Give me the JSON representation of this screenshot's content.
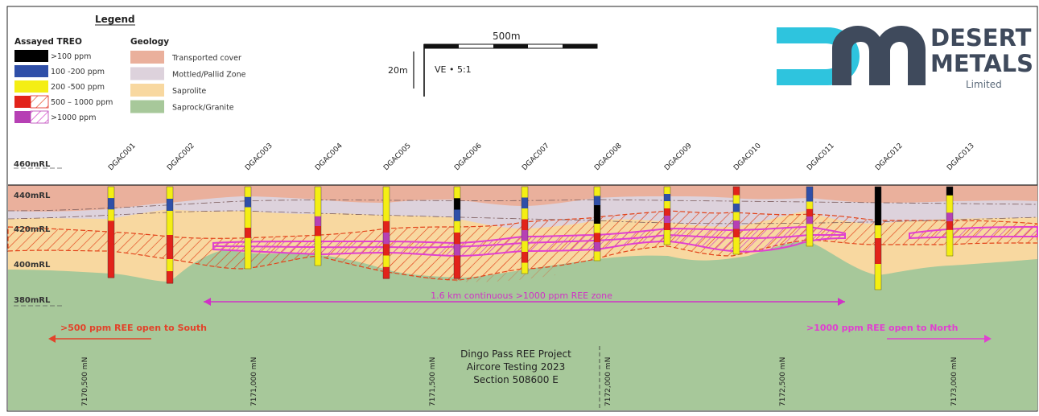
{
  "legend": {
    "title": "Legend",
    "treo_heading": "Assayed TREO",
    "geology_heading": "Geology",
    "treo_items": [
      {
        "label": ">100 ppm",
        "color": "#000000",
        "hatch": false
      },
      {
        "label": "100 -200 ppm",
        "color": "#2f4fa8",
        "hatch": false
      },
      {
        "label": "200 -500 ppm",
        "color": "#f4ee14",
        "hatch": false
      },
      {
        "label": "500 – 1000 ppm",
        "color": "#e2231a",
        "hatch": true
      },
      {
        "label": ">1000 ppm",
        "color": "#b640b4",
        "hatch": true
      }
    ],
    "geology_items": [
      {
        "label": "Transported cover",
        "color": "#eab09c"
      },
      {
        "label": "Mottled/Pallid Zone",
        "color": "#ddd2dc"
      },
      {
        "label": "Saprolite",
        "color": "#f8d8a0"
      },
      {
        "label": "Saprock/Granite",
        "color": "#a7c89a"
      }
    ]
  },
  "scale": {
    "horizontal": "500m",
    "vertical": "20m",
    "ve": "VE • 5:1"
  },
  "logo": {
    "line1": "DESERT",
    "line2": "METALS",
    "line3": "Limited",
    "brand_dark": "#3f4a5c",
    "brand_cyan": "#2ec4de"
  },
  "rl_labels": [
    "460mRL",
    "440mRL",
    "420mRL",
    "400mRL",
    "380mRL"
  ],
  "holes": [
    "DGAC001",
    "DGAC002",
    "DGAC003",
    "DGAC004",
    "DGAC005",
    "DGAC006",
    "DGAC007",
    "DGAC008",
    "DGAC009",
    "DGAC010",
    "DGAC011",
    "DGAC012",
    "DGAC013"
  ],
  "annotations": {
    "zone": "1.6 km continuous >1000 ppm REE zone",
    "south": ">500 ppm REE open to South",
    "north": ">1000 ppm REE open to North"
  },
  "northings": [
    "7170,500 mN",
    "7171,000 mN",
    "7171,500 mN",
    "7172,000 mN",
    "7172,500 mN",
    "7173,000 mN"
  ],
  "project": {
    "line1": "Dingo Pass REE Project",
    "line2": "Aircore Testing 2023",
    "line3": "Section 508600 E"
  },
  "colors": {
    "transported": "#eab09c",
    "mottled": "#ddd2dc",
    "saprolite": "#f8d8a0",
    "saprock": "#a7c89a",
    "treo_black": "#000000",
    "treo_blue": "#2f4fa8",
    "treo_yellow": "#f4ee14",
    "treo_red": "#e2231a",
    "treo_magenta": "#b640b4",
    "zone_magenta": "#e040d0",
    "south_red": "#e2432a"
  }
}
